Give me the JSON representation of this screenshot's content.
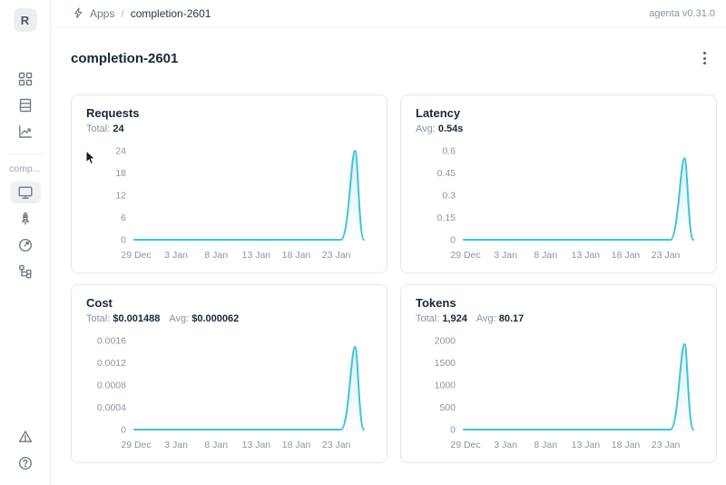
{
  "header": {
    "breadcrumb": {
      "root": "Apps",
      "separator": "/",
      "current": "completion-2601"
    },
    "version": "agenta v0.31.0"
  },
  "sidebar": {
    "avatar_letter": "R",
    "workspace_label": "comp...",
    "top_icons": [
      "apps-grid-icon",
      "datasets-table-icon",
      "observability-chart-icon"
    ],
    "app_icons": [
      "playground-monitor-icon",
      "deployments-rocket-icon",
      "evaluations-gauge-icon",
      "traces-tree-icon"
    ],
    "selected_icon": "playground-monitor-icon",
    "bottom_icons": [
      "alert-triangle-icon",
      "help-circle-icon"
    ]
  },
  "page": {
    "title": "completion-2601"
  },
  "colors": {
    "line": "#3fc3da",
    "area_top": "rgba(63,195,218,0.22)",
    "text_dark": "#16283a",
    "text_muted": "#8693a2",
    "card_border": "#e4e7ec"
  },
  "chart_data": [
    {
      "type": "area",
      "title": "Requests",
      "stats": [
        {
          "label": "Total:",
          "value": "24"
        }
      ],
      "ylim": [
        0,
        24
      ],
      "ytick_labels": [
        "0",
        "6",
        "12",
        "18",
        "24"
      ],
      "xtick_labels": [
        "29 Dec",
        "3 Jan",
        "8 Jan",
        "13 Jan",
        "18 Jan",
        "23 Jan"
      ],
      "grid": false,
      "legend": false,
      "series": [
        {
          "name": "Requests",
          "points": [
            {
              "x": "29 Dec",
              "y": 0
            },
            {
              "x": "24 Jan",
              "y": 0
            },
            {
              "x": "26 Jan",
              "y": 24
            },
            {
              "x": "28 Jan",
              "y": 0
            }
          ]
        }
      ],
      "spike": {
        "start_fraction": 0.9,
        "peak_fraction": 0.962,
        "end_fraction": 1.0,
        "peak_value": 24
      }
    },
    {
      "type": "area",
      "title": "Latency",
      "stats": [
        {
          "label": "Avg:",
          "value": "0.54s"
        }
      ],
      "ylim": [
        0,
        0.6
      ],
      "ytick_labels": [
        "0",
        "0.15",
        "0.3",
        "0.45",
        "0.6"
      ],
      "xtick_labels": [
        "29 Dec",
        "3 Jan",
        "8 Jan",
        "13 Jan",
        "18 Jan",
        "23 Jan"
      ],
      "grid": false,
      "legend": false,
      "series": [
        {
          "name": "Latency",
          "points": [
            {
              "x": "29 Dec",
              "y": 0
            },
            {
              "x": "24 Jan",
              "y": 0
            },
            {
              "x": "26 Jan",
              "y": 0.55
            },
            {
              "x": "28 Jan",
              "y": 0
            }
          ]
        }
      ],
      "spike": {
        "start_fraction": 0.9,
        "peak_fraction": 0.962,
        "end_fraction": 1.0,
        "peak_value": 0.55
      }
    },
    {
      "type": "area",
      "title": "Cost",
      "stats": [
        {
          "label": "Total:",
          "value": "$0.001488"
        },
        {
          "label": "Avg:",
          "value": "$0.000062"
        }
      ],
      "ylim": [
        0,
        0.0016
      ],
      "ytick_labels": [
        "0",
        "0.0004",
        "0.0008",
        "0.0012",
        "0.0016"
      ],
      "xtick_labels": [
        "29 Dec",
        "3 Jan",
        "8 Jan",
        "13 Jan",
        "18 Jan",
        "23 Jan"
      ],
      "grid": false,
      "legend": false,
      "series": [
        {
          "name": "Cost",
          "points": [
            {
              "x": "29 Dec",
              "y": 0
            },
            {
              "x": "24 Jan",
              "y": 0
            },
            {
              "x": "26 Jan",
              "y": 0.001488
            },
            {
              "x": "28 Jan",
              "y": 0
            }
          ]
        }
      ],
      "spike": {
        "start_fraction": 0.9,
        "peak_fraction": 0.962,
        "end_fraction": 1.0,
        "peak_value": 0.001488
      }
    },
    {
      "type": "area",
      "title": "Tokens",
      "stats": [
        {
          "label": "Total:",
          "value": "1,924"
        },
        {
          "label": "Avg:",
          "value": "80.17"
        }
      ],
      "ylim": [
        0,
        2000
      ],
      "ytick_labels": [
        "0",
        "500",
        "1000",
        "1500",
        "2000"
      ],
      "xtick_labels": [
        "29 Dec",
        "3 Jan",
        "8 Jan",
        "13 Jan",
        "18 Jan",
        "23 Jan"
      ],
      "grid": false,
      "legend": false,
      "series": [
        {
          "name": "Tokens",
          "points": [
            {
              "x": "29 Dec",
              "y": 0
            },
            {
              "x": "24 Jan",
              "y": 0
            },
            {
              "x": "26 Jan",
              "y": 1924
            },
            {
              "x": "28 Jan",
              "y": 0
            }
          ]
        }
      ],
      "spike": {
        "start_fraction": 0.9,
        "peak_fraction": 0.962,
        "end_fraction": 1.0,
        "peak_value": 1924
      }
    }
  ]
}
